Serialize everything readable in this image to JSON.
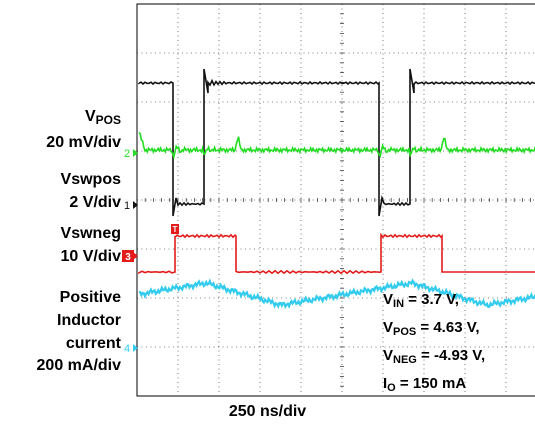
{
  "chart_data": {
    "type": "line",
    "xlabel": "250 ns/div",
    "grid": true,
    "x_divisions": 10,
    "y_divisions": 8,
    "channels": [
      {
        "id": "vpos",
        "marker": "2",
        "name": "V",
        "name_sub": "POS",
        "scale": "20 mV/div",
        "color": "#22dd22"
      },
      {
        "id": "vswpos",
        "marker": "1",
        "name": "Vswpos",
        "scale": "2 V/div",
        "color": "#111111"
      },
      {
        "id": "vswneg",
        "marker": "3",
        "name": "Vswneg",
        "scale": "10 V/div",
        "color": "#e31b1b"
      },
      {
        "id": "il",
        "marker": "4",
        "name": "Positive Inductor current",
        "name_line1": "Positive",
        "name_line2": "Inductor",
        "name_line3": "current",
        "scale": "200 mA/div",
        "color": "#33ccee"
      }
    ],
    "trigger_marker": "T",
    "conditions": [
      {
        "symbol": "V",
        "sub": "IN",
        "value": " = 3.7 V,"
      },
      {
        "symbol": "V",
        "sub": "POS",
        "value": " = 4.63 V,"
      },
      {
        "symbol": "V",
        "sub": "NEG",
        "value": " = -4.93 V,"
      },
      {
        "symbol": "I",
        "sub": "O",
        "value": " = 150 mA"
      }
    ]
  }
}
